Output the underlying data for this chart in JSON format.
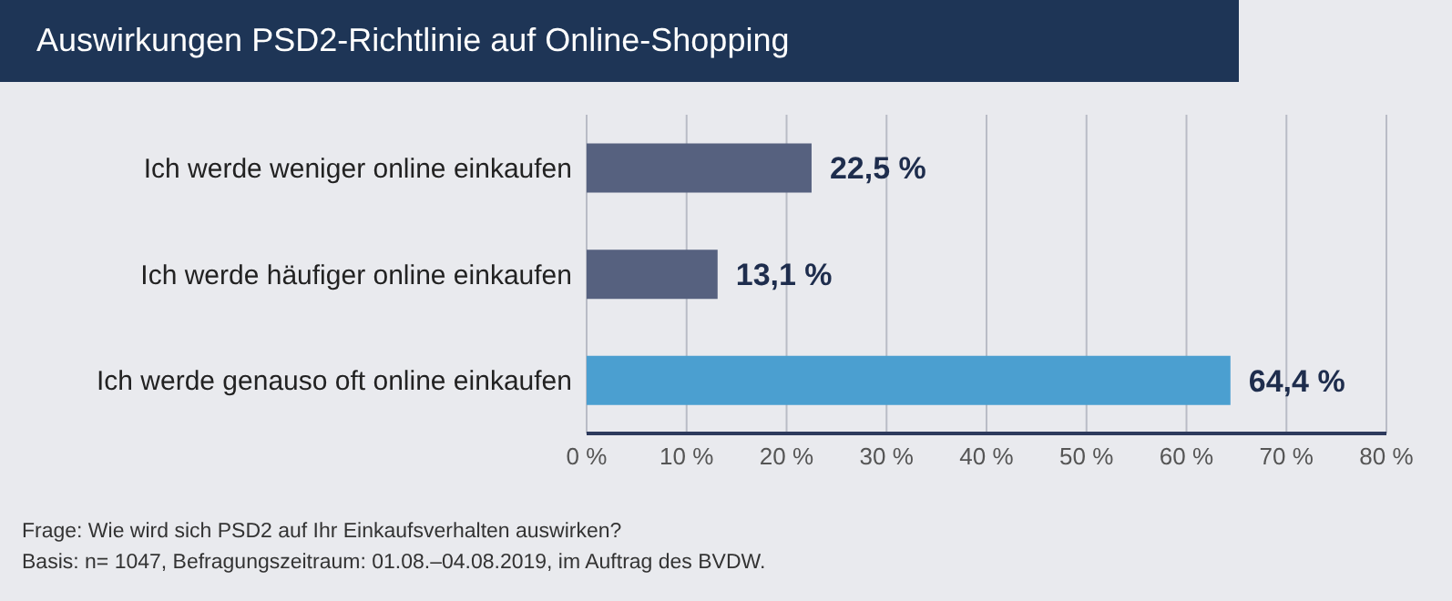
{
  "chart_data": {
    "type": "bar",
    "orientation": "horizontal",
    "title": "Auswirkungen PSD2-Richtlinie auf Online-Shopping",
    "categories": [
      "Ich werde weniger online einkaufen",
      "Ich werde häufiger online einkaufen",
      "Ich werde genauso oft online einkaufen"
    ],
    "values": [
      22.5,
      13.1,
      64.4
    ],
    "colors": [
      "#56617f",
      "#56617f",
      "#4b9fd0"
    ],
    "value_labels": [
      "22,5 %",
      "13,1 %",
      "64,4 %"
    ],
    "xlim": [
      0,
      80
    ],
    "xticks": [
      {
        "value": 0,
        "label": "0 %"
      },
      {
        "value": 10,
        "label": "10 %"
      },
      {
        "value": 20,
        "label": "20 %"
      },
      {
        "value": 30,
        "label": "30 %"
      },
      {
        "value": 40,
        "label": "40 %"
      },
      {
        "value": 50,
        "label": "50 %"
      },
      {
        "value": 60,
        "label": "60 %"
      },
      {
        "value": 70,
        "label": "70 %"
      },
      {
        "value": 80,
        "label": "80 %"
      }
    ],
    "grid": "x",
    "annotations": [
      "Frage: Wie wird sich PSD2 auf Ihr Einkaufsverhalten auswirken?",
      "Basis: n= 1047, Befragungszeitraum: 01.08.–04.08.2019, im Auftrag des BVDW."
    ]
  }
}
